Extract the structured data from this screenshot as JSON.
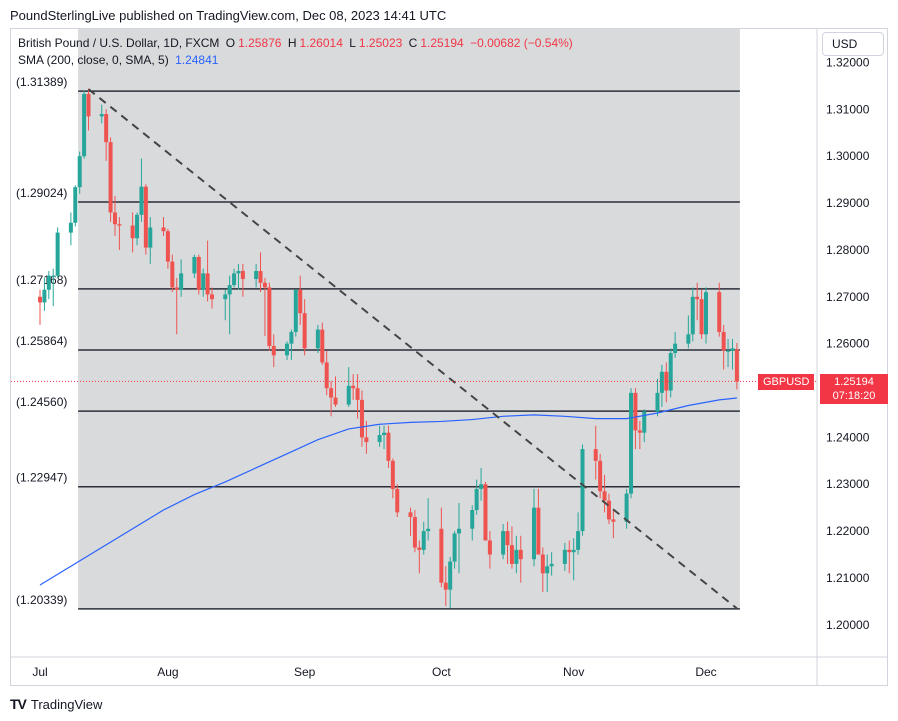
{
  "header": {
    "text": "PoundSterlingLive published on TradingView.com, Dec 08, 2023 14:41 UTC"
  },
  "legend": {
    "symbol": "British Pound / U.S. Dollar, 1D, FXCM",
    "o_label": "O",
    "o_value": "1.25876",
    "h_label": "H",
    "h_value": "1.26014",
    "l_label": "L",
    "l_value": "1.25023",
    "c_label": "C",
    "c_value": "1.25194",
    "change": "−0.00682 (−0.54%)",
    "sma_label": "SMA (200, close, 0, SMA, 5)",
    "sma_value": "1.24841"
  },
  "currency_button": "USD",
  "symbol_badge": "GBPUSD",
  "price_badge": {
    "price": "1.25194",
    "countdown": "07:18:20"
  },
  "footer": {
    "brand": "TradingView",
    "logo_mark": "TV"
  },
  "colors": {
    "up": "#26a69a",
    "down": "#ef5350",
    "sma": "#2962ff",
    "shade": "#d9dadc",
    "line": "#2a2e39"
  },
  "chart_data": {
    "type": "candlestick",
    "symbol": "GBPUSD",
    "ylim": [
      1.195,
      1.323
    ],
    "y_ticks": [
      "1.32000",
      "1.31000",
      "1.30000",
      "1.29000",
      "1.28000",
      "1.27000",
      "1.26000",
      "1.25000",
      "1.24000",
      "1.23000",
      "1.22000",
      "1.21000",
      "1.20000"
    ],
    "x_ticks": [
      {
        "label": "Jul",
        "date": "2023-07-03"
      },
      {
        "label": "Aug",
        "date": "2023-08-01"
      },
      {
        "label": "Sep",
        "date": "2023-09-01"
      },
      {
        "label": "Oct",
        "date": "2023-10-02"
      },
      {
        "label": "Nov",
        "date": "2023-11-01"
      },
      {
        "label": "Dec",
        "date": "2023-12-01"
      }
    ],
    "x_range": {
      "start": "2023-07-03",
      "end": "2023-12-08"
    },
    "horizontal_levels": [
      {
        "label": "(1.31389)",
        "value": 1.31389
      },
      {
        "label": "(1.29024)",
        "value": 1.29024
      },
      {
        "label": "(1.27168)",
        "value": 1.27168
      },
      {
        "label": "(1.25864)",
        "value": 1.25864
      },
      {
        "label": "(1.24560)",
        "value": 1.2456
      },
      {
        "label": "(1.22947)",
        "value": 1.22947
      },
      {
        "label": "(1.20339)",
        "value": 1.20339
      }
    ],
    "trendline": {
      "start": {
        "date": "2023-07-14",
        "value": 1.3143
      },
      "end": {
        "date": "2023-12-08",
        "value": 1.2035
      }
    },
    "current_price": 1.25194,
    "sma_series": {
      "name": "SMA (200, close, 0, SMA, 5)",
      "points": [
        [
          "2023-07-03",
          1.2085
        ],
        [
          "2023-07-10",
          1.2125
        ],
        [
          "2023-07-17",
          1.2165
        ],
        [
          "2023-07-24",
          1.2205
        ],
        [
          "2023-07-31",
          1.2245
        ],
        [
          "2023-08-07",
          1.2278
        ],
        [
          "2023-08-14",
          1.2305
        ],
        [
          "2023-08-21",
          1.2335
        ],
        [
          "2023-08-28",
          1.2365
        ],
        [
          "2023-09-04",
          1.2395
        ],
        [
          "2023-09-11",
          1.2418
        ],
        [
          "2023-09-18",
          1.2428
        ],
        [
          "2023-09-25",
          1.2432
        ],
        [
          "2023-10-02",
          1.2434
        ],
        [
          "2023-10-09",
          1.2438
        ],
        [
          "2023-10-16",
          1.2445
        ],
        [
          "2023-10-23",
          1.2448
        ],
        [
          "2023-10-30",
          1.2445
        ],
        [
          "2023-11-06",
          1.244
        ],
        [
          "2023-11-13",
          1.244
        ],
        [
          "2023-11-20",
          1.2452
        ],
        [
          "2023-11-27",
          1.2468
        ],
        [
          "2023-12-04",
          1.248
        ],
        [
          "2023-12-08",
          1.2484
        ]
      ]
    },
    "candles": [
      [
        "2023-07-03",
        1.27,
        1.2715,
        1.264,
        1.2688
      ],
      [
        "2023-07-04",
        1.2688,
        1.274,
        1.267,
        1.2715
      ],
      [
        "2023-07-05",
        1.2715,
        1.2755,
        1.2695,
        1.2745
      ],
      [
        "2023-07-06",
        1.2745,
        1.276,
        1.268,
        1.2745
      ],
      [
        "2023-07-07",
        1.2745,
        1.2848,
        1.274,
        1.2837
      ],
      [
        "2023-07-10",
        1.2837,
        1.288,
        1.281,
        1.2858
      ],
      [
        "2023-07-11",
        1.2858,
        1.2938,
        1.285,
        1.2934
      ],
      [
        "2023-07-12",
        1.2934,
        1.301,
        1.292,
        1.3
      ],
      [
        "2023-07-13",
        1.3,
        1.314,
        1.2995,
        1.3133
      ],
      [
        "2023-07-14",
        1.3133,
        1.3144,
        1.3055,
        1.3085
      ],
      [
        "2023-07-17",
        1.3085,
        1.311,
        1.307,
        1.309
      ],
      [
        "2023-07-18",
        1.309,
        1.31,
        1.299,
        1.303
      ],
      [
        "2023-07-19",
        1.303,
        1.304,
        1.286,
        1.288
      ],
      [
        "2023-07-20",
        1.288,
        1.2915,
        1.283,
        1.2855
      ],
      [
        "2023-07-21",
        1.2855,
        1.287,
        1.28,
        1.2852
      ],
      [
        "2023-07-24",
        1.2852,
        1.288,
        1.2795,
        1.2825
      ],
      [
        "2023-07-25",
        1.2825,
        1.288,
        1.281,
        1.2875
      ],
      [
        "2023-07-26",
        1.2875,
        1.2995,
        1.286,
        1.2935
      ],
      [
        "2023-07-27",
        1.2935,
        1.294,
        1.279,
        1.2805
      ],
      [
        "2023-07-28",
        1.2805,
        1.287,
        1.277,
        1.2848
      ],
      [
        "2023-07-31",
        1.2848,
        1.287,
        1.283,
        1.284
      ],
      [
        "2023-08-01",
        1.284,
        1.2845,
        1.276,
        1.2775
      ],
      [
        "2023-08-02",
        1.2775,
        1.279,
        1.271,
        1.272
      ],
      [
        "2023-08-03",
        1.272,
        1.274,
        1.262,
        1.2715
      ],
      [
        "2023-08-04",
        1.2715,
        1.278,
        1.27,
        1.275
      ],
      [
        "2023-08-07",
        1.275,
        1.279,
        1.274,
        1.2785
      ],
      [
        "2023-08-08",
        1.2785,
        1.279,
        1.2705,
        1.2715
      ],
      [
        "2023-08-09",
        1.2715,
        1.276,
        1.27,
        1.275
      ],
      [
        "2023-08-10",
        1.275,
        1.282,
        1.269,
        1.2705
      ],
      [
        "2023-08-11",
        1.2705,
        1.272,
        1.2675,
        1.2695
      ],
      [
        "2023-08-14",
        1.2695,
        1.2715,
        1.265,
        1.2705
      ],
      [
        "2023-08-15",
        1.2705,
        1.2745,
        1.262,
        1.2725
      ],
      [
        "2023-08-16",
        1.2725,
        1.276,
        1.272,
        1.275
      ],
      [
        "2023-08-17",
        1.275,
        1.277,
        1.2715,
        1.2755
      ],
      [
        "2023-08-18",
        1.2755,
        1.277,
        1.27,
        1.2738
      ],
      [
        "2023-08-21",
        1.2738,
        1.277,
        1.272,
        1.2755
      ],
      [
        "2023-08-22",
        1.2755,
        1.2795,
        1.271,
        1.273
      ],
      [
        "2023-08-23",
        1.273,
        1.274,
        1.2616,
        1.272
      ],
      [
        "2023-08-24",
        1.272,
        1.273,
        1.2585,
        1.2595
      ],
      [
        "2023-08-25",
        1.2595,
        1.262,
        1.255,
        1.2575
      ],
      [
        "2023-08-28",
        1.2575,
        1.2605,
        1.2565,
        1.26
      ],
      [
        "2023-08-29",
        1.26,
        1.263,
        1.2565,
        1.2625
      ],
      [
        "2023-08-30",
        1.2625,
        1.271,
        1.2615,
        1.2715
      ],
      [
        "2023-08-31",
        1.2715,
        1.2745,
        1.264,
        1.2665
      ],
      [
        "2023-09-01",
        1.2665,
        1.2695,
        1.2575,
        1.259
      ],
      [
        "2023-09-04",
        1.259,
        1.264,
        1.258,
        1.263
      ],
      [
        "2023-09-05",
        1.263,
        1.2645,
        1.2555,
        1.256
      ],
      [
        "2023-09-06",
        1.256,
        1.2585,
        1.249,
        1.2505
      ],
      [
        "2023-09-07",
        1.2505,
        1.252,
        1.2445,
        1.2485
      ],
      [
        "2023-09-08",
        1.2485,
        1.253,
        1.2465,
        1.247
      ],
      [
        "2023-09-11",
        1.247,
        1.255,
        1.2465,
        1.251
      ],
      [
        "2023-09-12",
        1.251,
        1.2535,
        1.248,
        1.2505
      ],
      [
        "2023-09-13",
        1.2505,
        1.2535,
        1.244,
        1.248
      ],
      [
        "2023-09-14",
        1.248,
        1.25,
        1.238,
        1.24
      ],
      [
        "2023-09-15",
        1.24,
        1.2435,
        1.2365,
        1.239
      ],
      [
        "2023-09-18",
        1.239,
        1.2425,
        1.238,
        1.2405
      ],
      [
        "2023-09-19",
        1.2405,
        1.2425,
        1.2375,
        1.241
      ],
      [
        "2023-09-20",
        1.241,
        1.2425,
        1.2335,
        1.235
      ],
      [
        "2023-09-21",
        1.235,
        1.2355,
        1.227,
        1.229
      ],
      [
        "2023-09-22",
        1.229,
        1.23,
        1.223,
        1.224
      ],
      [
        "2023-09-25",
        1.224,
        1.225,
        1.219,
        1.223
      ],
      [
        "2023-09-26",
        1.223,
        1.2245,
        1.2155,
        1.2165
      ],
      [
        "2023-09-27",
        1.2165,
        1.218,
        1.211,
        1.216
      ],
      [
        "2023-09-28",
        1.216,
        1.222,
        1.215,
        1.22
      ],
      [
        "2023-09-29",
        1.22,
        1.227,
        1.218,
        1.2205
      ],
      [
        "2023-10-02",
        1.2205,
        1.225,
        1.208,
        1.209
      ],
      [
        "2023-10-03",
        1.209,
        1.2125,
        1.204,
        1.2075
      ],
      [
        "2023-10-04",
        1.2075,
        1.2145,
        1.2035,
        1.2135
      ],
      [
        "2023-10-05",
        1.2135,
        1.22,
        1.212,
        1.2195
      ],
      [
        "2023-10-06",
        1.2195,
        1.226,
        1.211,
        1.2205
      ],
      [
        "2023-10-09",
        1.2205,
        1.2255,
        1.218,
        1.2245
      ],
      [
        "2023-10-10",
        1.2245,
        1.231,
        1.2235,
        1.229
      ],
      [
        "2023-10-11",
        1.229,
        1.2335,
        1.2265,
        1.23
      ],
      [
        "2023-10-12",
        1.23,
        1.2305,
        1.218,
        1.218
      ],
      [
        "2023-10-13",
        1.218,
        1.22,
        1.212,
        1.215
      ],
      [
        "2023-10-16",
        1.215,
        1.2215,
        1.214,
        1.22
      ],
      [
        "2023-10-17",
        1.22,
        1.222,
        1.213,
        1.217
      ],
      [
        "2023-10-18",
        1.217,
        1.221,
        1.212,
        1.213
      ],
      [
        "2023-10-19",
        1.213,
        1.219,
        1.211,
        1.216
      ],
      [
        "2023-10-20",
        1.216,
        1.219,
        1.209,
        1.214
      ],
      [
        "2023-10-23",
        1.214,
        1.229,
        1.2125,
        1.225
      ],
      [
        "2023-10-24",
        1.225,
        1.229,
        1.215,
        1.215
      ],
      [
        "2023-10-25",
        1.215,
        1.2165,
        1.207,
        1.211
      ],
      [
        "2023-10-26",
        1.211,
        1.215,
        1.207,
        1.2125
      ],
      [
        "2023-10-27",
        1.2125,
        1.2155,
        1.2105,
        1.213
      ],
      [
        "2023-10-30",
        1.213,
        1.2175,
        1.2115,
        1.216
      ],
      [
        "2023-10-31",
        1.216,
        1.218,
        1.211,
        1.2155
      ],
      [
        "2023-11-01",
        1.2155,
        1.2185,
        1.2095,
        1.216
      ],
      [
        "2023-11-02",
        1.216,
        1.224,
        1.215,
        1.22
      ],
      [
        "2023-11-03",
        1.22,
        1.2385,
        1.219,
        1.2375
      ],
      [
        "2023-11-06",
        1.2375,
        1.2425,
        1.231,
        1.235
      ],
      [
        "2023-11-07",
        1.235,
        1.2365,
        1.227,
        1.2285
      ],
      [
        "2023-11-08",
        1.2285,
        1.232,
        1.224,
        1.2265
      ],
      [
        "2023-11-09",
        1.2265,
        1.228,
        1.2215,
        1.2225
      ],
      [
        "2023-11-10",
        1.2225,
        1.2245,
        1.2185,
        1.222
      ],
      [
        "2023-11-13",
        1.222,
        1.229,
        1.2205,
        1.228
      ],
      [
        "2023-11-14",
        1.228,
        1.2505,
        1.227,
        1.2495
      ],
      [
        "2023-11-15",
        1.2495,
        1.2505,
        1.2375,
        1.2415
      ],
      [
        "2023-11-16",
        1.2415,
        1.2435,
        1.2375,
        1.241
      ],
      [
        "2023-11-17",
        1.241,
        1.246,
        1.239,
        1.2455
      ],
      [
        "2023-11-20",
        1.2455,
        1.2525,
        1.2445,
        1.2495
      ],
      [
        "2023-11-21",
        1.2495,
        1.2555,
        1.2465,
        1.254
      ],
      [
        "2023-11-22",
        1.254,
        1.256,
        1.2475,
        1.25
      ],
      [
        "2023-11-23",
        1.25,
        1.259,
        1.2485,
        1.258
      ],
      [
        "2023-11-24",
        1.258,
        1.2625,
        1.257,
        1.26
      ],
      [
        "2023-11-27",
        1.26,
        1.266,
        1.259,
        1.262
      ],
      [
        "2023-11-28",
        1.262,
        1.272,
        1.2605,
        1.27
      ],
      [
        "2023-11-29",
        1.27,
        1.273,
        1.265,
        1.2695
      ],
      [
        "2023-11-30",
        1.2695,
        1.2715,
        1.261,
        1.262
      ],
      [
        "2023-12-01",
        1.262,
        1.272,
        1.26,
        1.271
      ],
      [
        "2023-12-04",
        1.271,
        1.273,
        1.2615,
        1.2625
      ],
      [
        "2023-12-05",
        1.2625,
        1.264,
        1.2545,
        1.2585
      ],
      [
        "2023-12-06",
        1.2585,
        1.261,
        1.255,
        1.2585
      ],
      [
        "2023-12-07",
        1.2585,
        1.261,
        1.2545,
        1.259
      ],
      [
        "2023-12-08",
        1.25876,
        1.26014,
        1.25023,
        1.25194
      ]
    ]
  }
}
